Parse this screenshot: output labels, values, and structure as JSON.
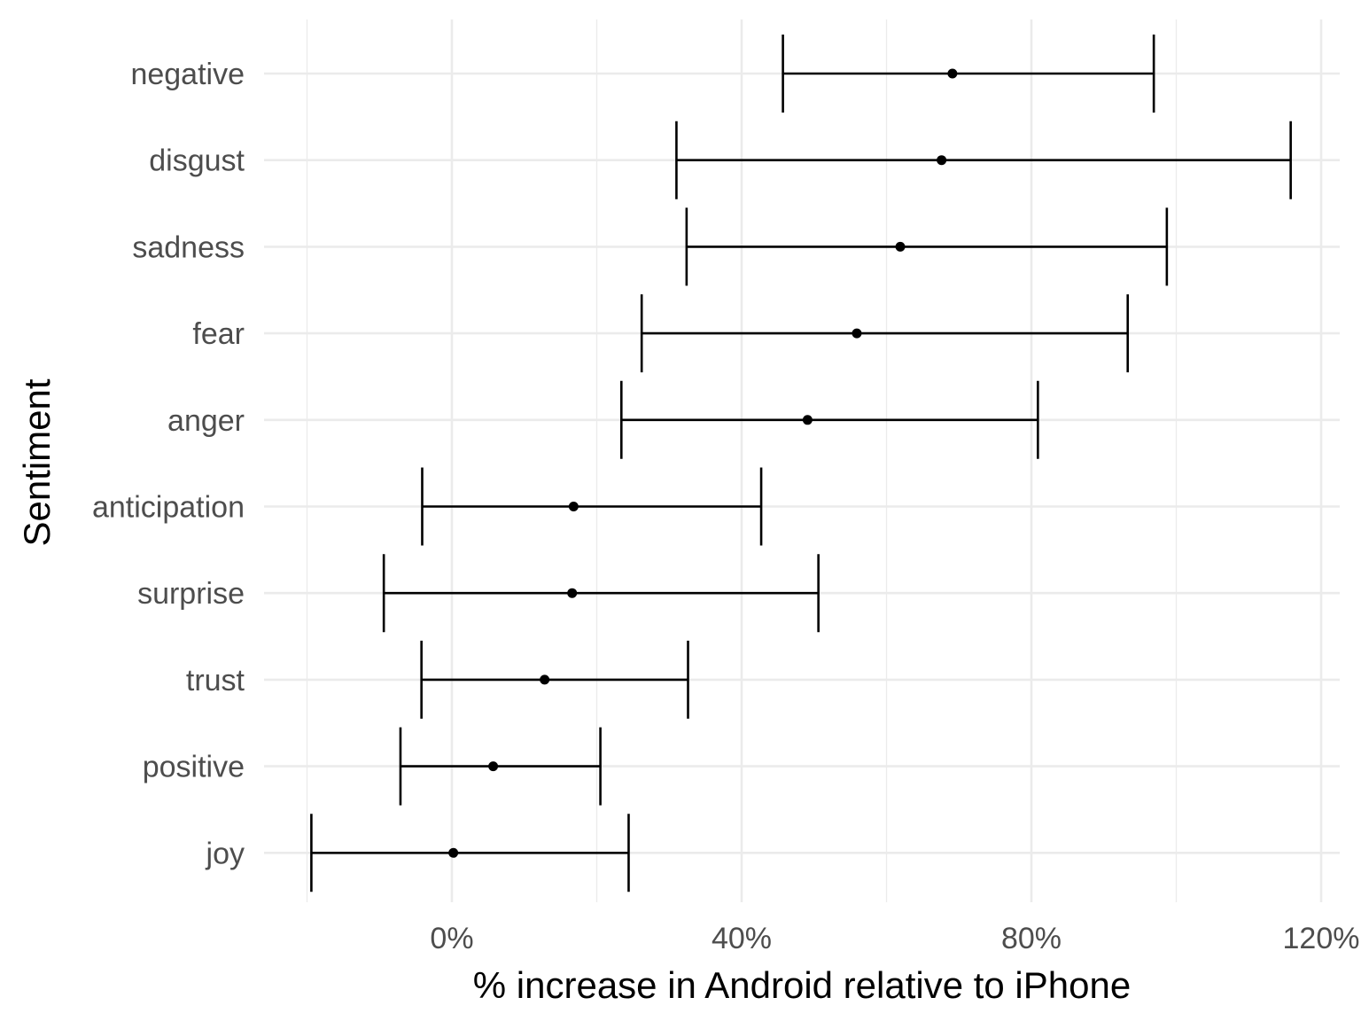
{
  "chart_data": {
    "type": "errorbar",
    "xlabel": "% increase in Android relative to iPhone",
    "ylabel": "Sentiment",
    "x_ticks": [
      0,
      40,
      80,
      120
    ],
    "x_tick_labels": [
      "0%",
      "40%",
      "80%",
      "120%"
    ],
    "xlim": [
      -20,
      122
    ],
    "grid": true,
    "categories": [
      "negative",
      "disgust",
      "sadness",
      "fear",
      "anger",
      "anticipation",
      "surprise",
      "trust",
      "positive",
      "joy"
    ],
    "estimates": [
      69.1,
      67.6,
      61.9,
      55.9,
      49.1,
      16.8,
      16.6,
      12.8,
      5.7,
      0.2
    ],
    "lower": [
      45.7,
      31.0,
      32.4,
      26.2,
      23.4,
      -4.1,
      -9.4,
      -4.2,
      -7.1,
      -19.4
    ],
    "upper": [
      96.9,
      115.8,
      98.7,
      93.3,
      80.9,
      42.7,
      50.6,
      32.6,
      20.5,
      24.4
    ],
    "colors": {
      "mark": "#000000",
      "grid": "#ebebeb",
      "text": "#4d4d4d"
    }
  }
}
